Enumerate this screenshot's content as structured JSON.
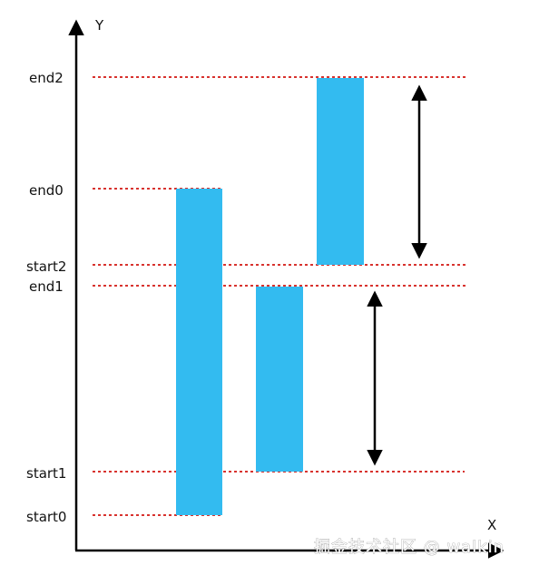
{
  "axes": {
    "x_label": "X",
    "y_label": "Y"
  },
  "levels": {
    "end2": "end2",
    "end0": "end0",
    "start2": "start2",
    "end1": "end1",
    "start1": "start1",
    "start0": "start0"
  },
  "bars": [
    {
      "name": "bar-0",
      "from": "start0",
      "to": "end0"
    },
    {
      "name": "bar-1",
      "from": "start1",
      "to": "end1"
    },
    {
      "name": "bar-2",
      "from": "start2",
      "to": "end2"
    }
  ],
  "arrows": [
    {
      "name": "span-1",
      "from": "start1",
      "to": "end1"
    },
    {
      "name": "span-2",
      "from": "start2",
      "to": "end2"
    }
  ],
  "colors": {
    "bar": "#33bbf0",
    "guide": "#d8332f",
    "axis": "#000000"
  },
  "watermark": "掘金技术社区 @ walkin"
}
